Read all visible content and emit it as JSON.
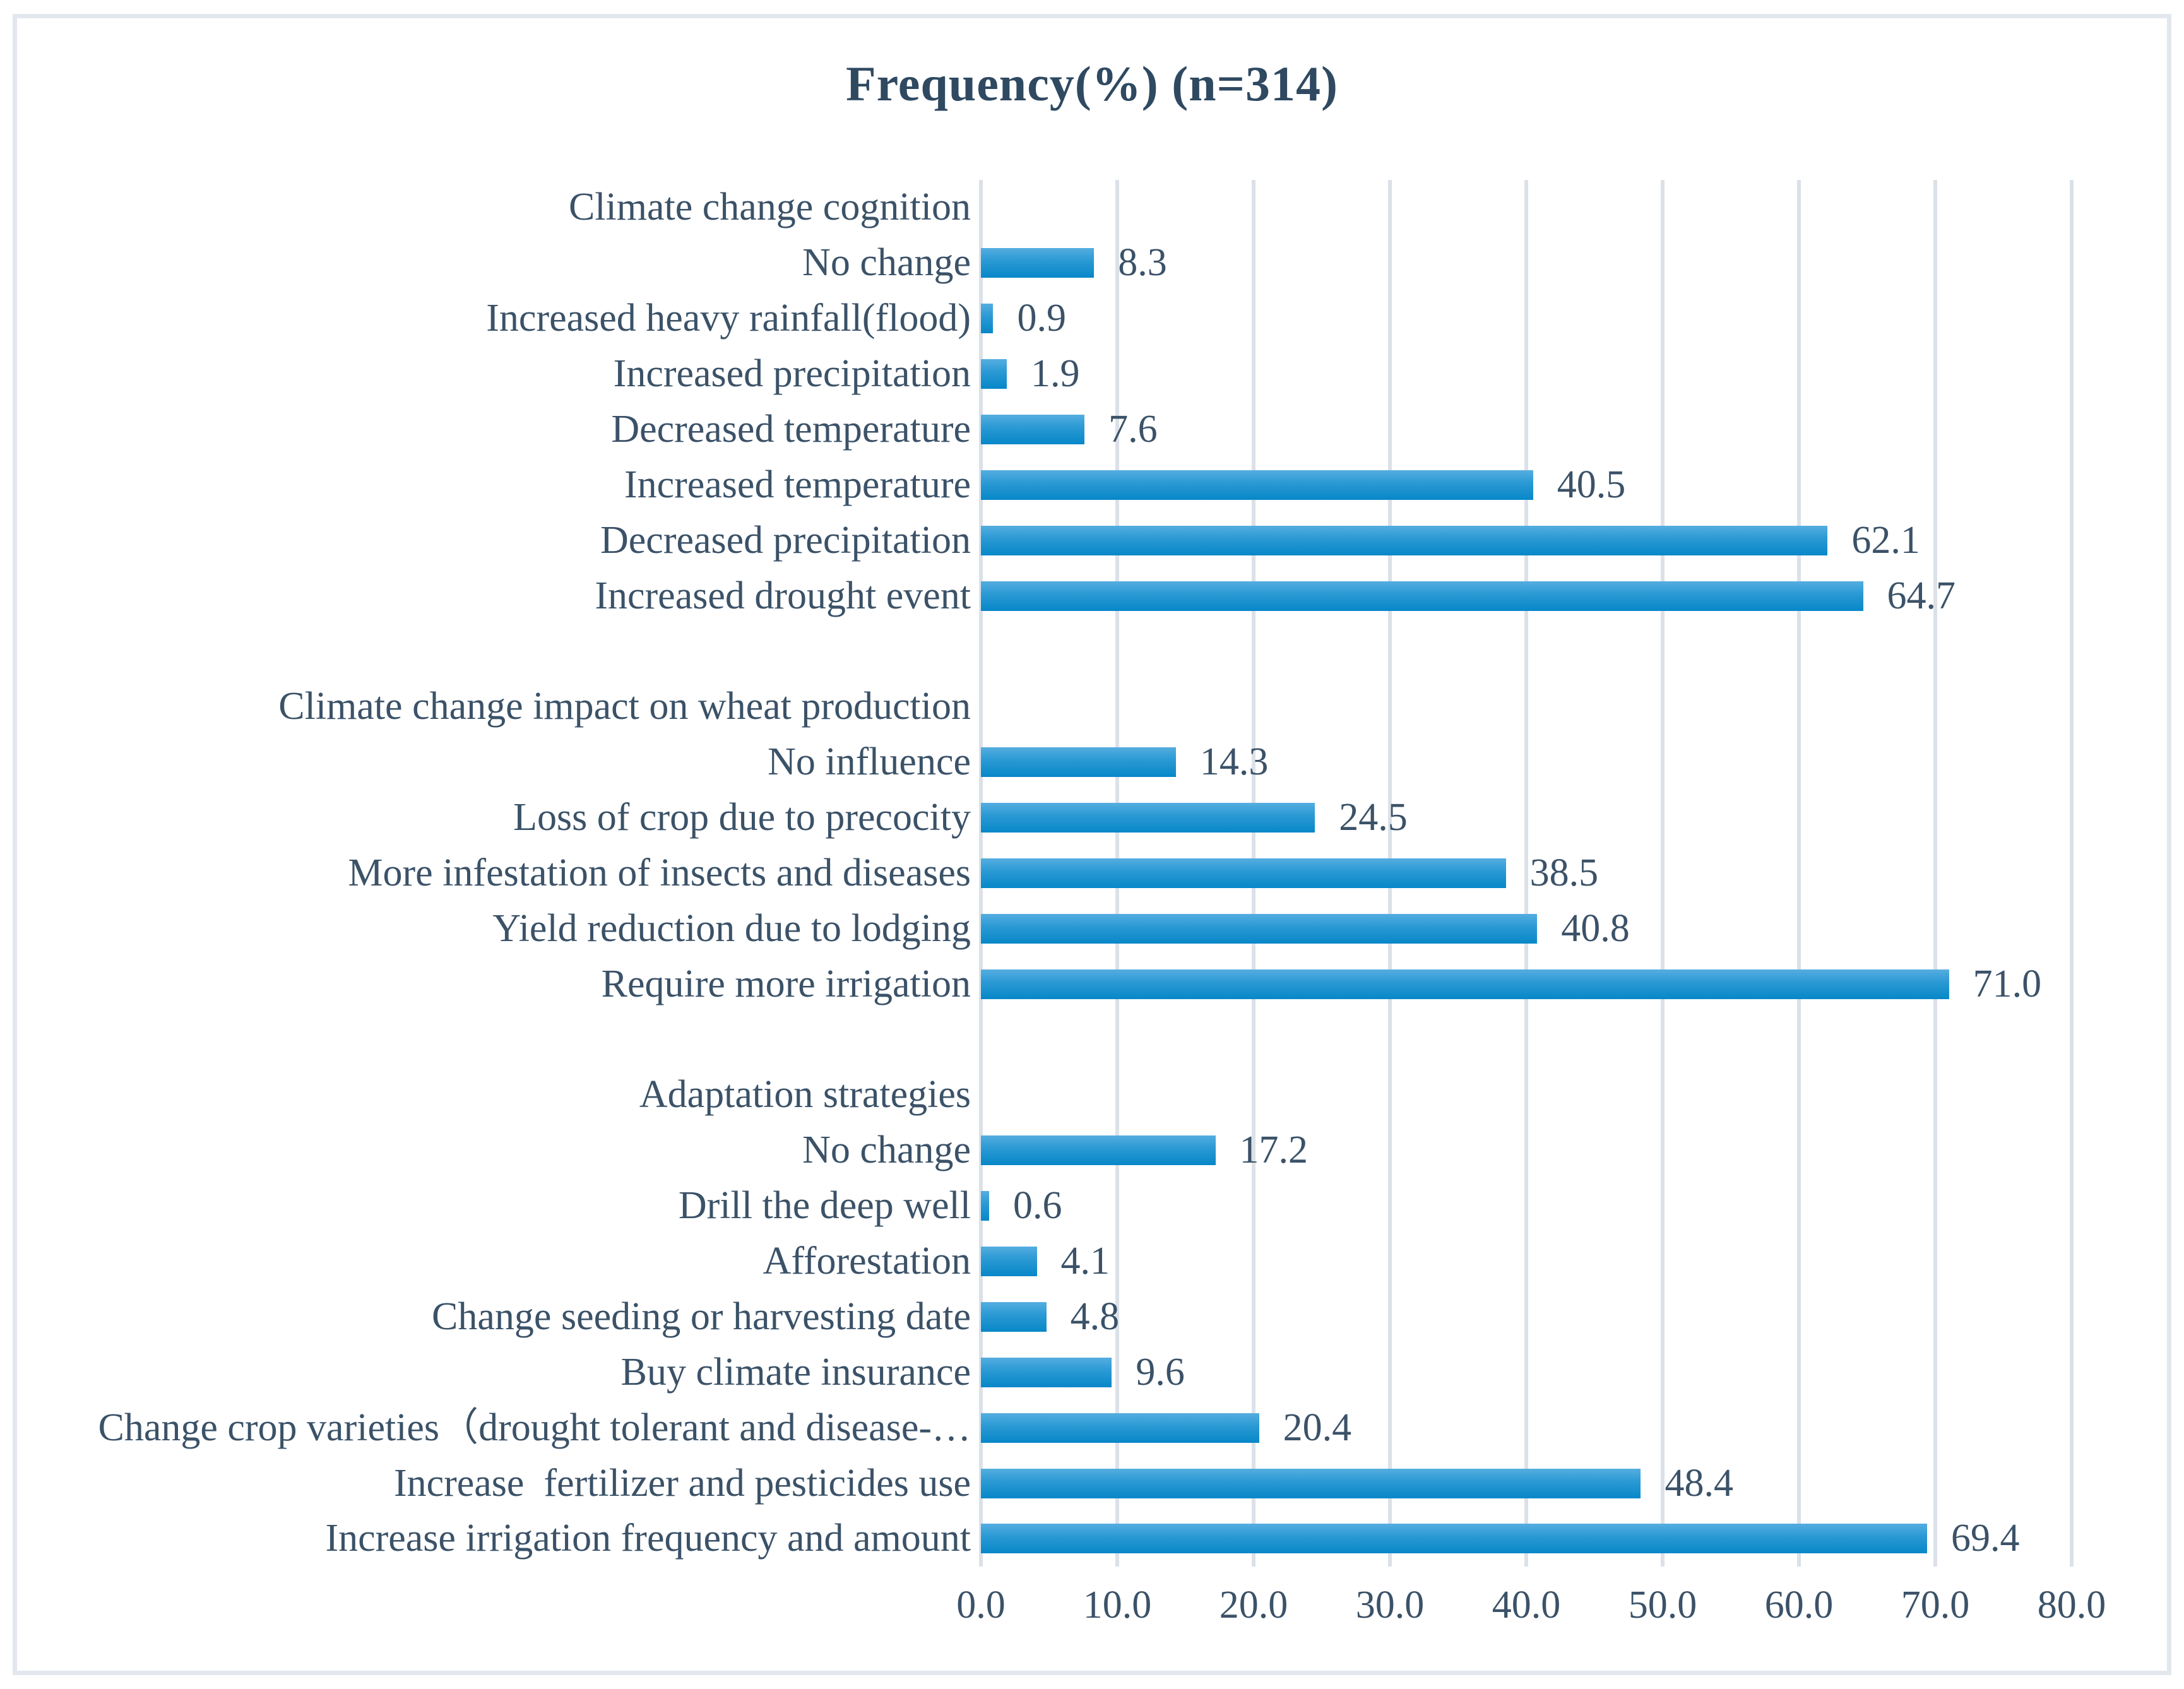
{
  "chart_data": {
    "type": "bar",
    "orientation": "horizontal",
    "title": "Frequency(%) (n=314)",
    "xlabel": "",
    "ylabel": "",
    "xlim": [
      0.0,
      80.0
    ],
    "grid": true,
    "x_ticks": [
      "0.0",
      "10.0",
      "20.0",
      "30.0",
      "40.0",
      "50.0",
      "60.0",
      "70.0",
      "80.0"
    ],
    "value_label_format": "one_decimal",
    "groups": [
      {
        "header": "Climate change cognition",
        "items": [
          {
            "label": "No change",
            "value": 8.3
          },
          {
            "label": "Increased heavy rainfall(flood)",
            "value": 0.9
          },
          {
            "label": "Increased precipitation",
            "value": 1.9
          },
          {
            "label": "Decreased temperature",
            "value": 7.6
          },
          {
            "label": "Increased temperature",
            "value": 40.5
          },
          {
            "label": "Decreased precipitation",
            "value": 62.1
          },
          {
            "label": "Increased drought event",
            "value": 64.7
          }
        ]
      },
      {
        "header": "Climate change impact on wheat production",
        "items": [
          {
            "label": "No influence",
            "value": 14.3
          },
          {
            "label": "Loss of crop due to precocity",
            "value": 24.5
          },
          {
            "label": "More infestation of insects and diseases",
            "value": 38.5
          },
          {
            "label": "Yield reduction due to lodging",
            "value": 40.8
          },
          {
            "label": "Require more irrigation",
            "value": 71.0
          }
        ]
      },
      {
        "header": "Adaptation strategies",
        "items": [
          {
            "label": "No change",
            "value": 17.2
          },
          {
            "label": "Drill the deep well",
            "value": 0.6
          },
          {
            "label": "Afforestation",
            "value": 4.1
          },
          {
            "label": "Change seeding or harvesting date",
            "value": 4.8
          },
          {
            "label": "Buy climate insurance",
            "value": 9.6
          },
          {
            "label": "Change crop varieties（drought tolerant and disease-…",
            "value": 20.4
          },
          {
            "label": "Increase  fertilizer and pesticides use",
            "value": 48.4
          },
          {
            "label": "Increase irrigation frequency and amount",
            "value": 69.4
          }
        ]
      }
    ],
    "colors": {
      "bar_gradient_top": "#55AEE0",
      "bar_gradient_mid": "#2B9AD4",
      "bar_gradient_bottom": "#0787C8",
      "text": "#3B5268",
      "title_text": "#2F4961",
      "gridline": "#DCE1E8",
      "frame_border": "#E3E7EE",
      "background": "#FFFFFF"
    }
  }
}
